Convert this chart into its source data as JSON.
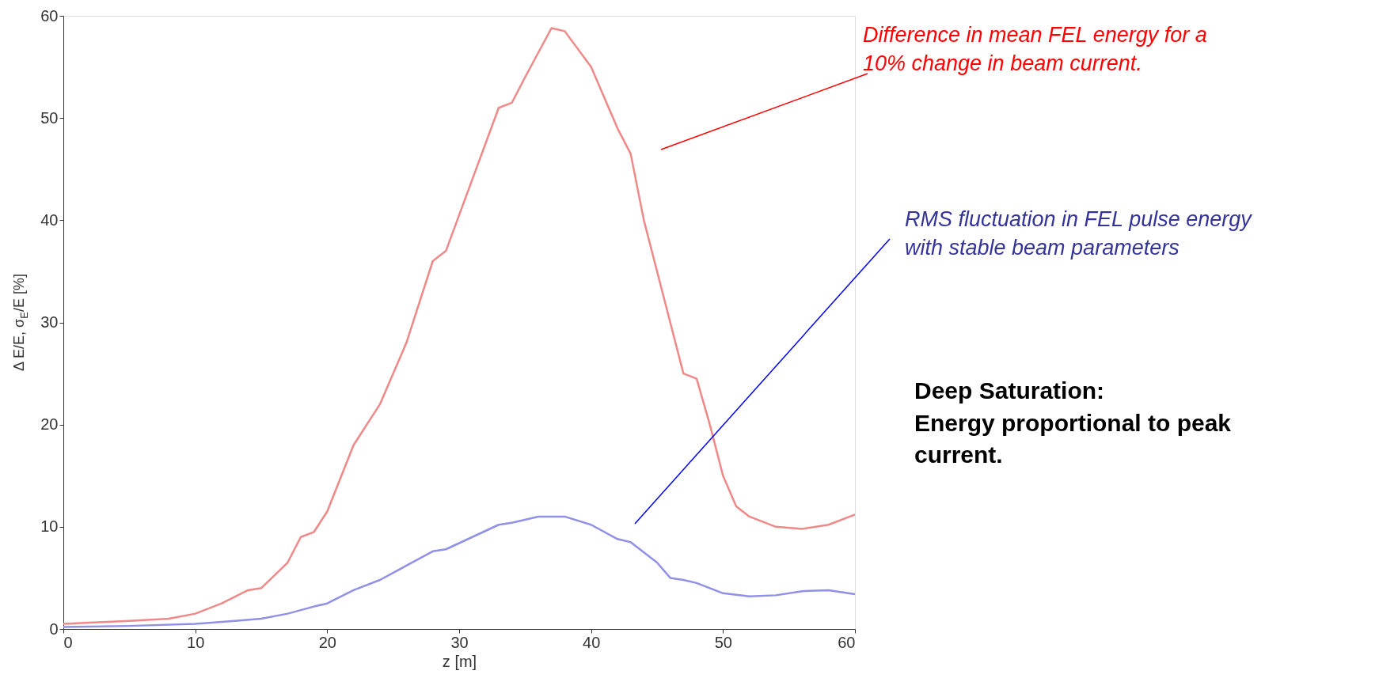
{
  "chart_data": {
    "type": "line",
    "xlabel": "z [m]",
    "ylabel": "Δ E/E, σ$_{E}$/E [%]",
    "xlim": [
      0,
      60
    ],
    "xticks": [
      0,
      10,
      20,
      30,
      40,
      50,
      60
    ],
    "ylim": [
      0,
      60
    ],
    "yticks": [
      0,
      10,
      20,
      30,
      40,
      50,
      60
    ],
    "grid": false,
    "series": [
      {
        "color": "#f08888",
        "x": [
          0,
          5,
          8,
          10,
          12,
          14,
          15,
          17,
          18,
          19,
          20,
          22,
          23,
          24,
          26,
          28,
          29,
          31,
          33,
          34,
          35,
          37,
          38,
          40,
          42,
          43,
          44,
          46,
          47,
          48,
          49,
          50,
          51,
          52,
          54,
          56,
          58,
          60
        ],
        "values": [
          0.5,
          0.8,
          1.0,
          1.5,
          2.5,
          3.8,
          4.0,
          6.5,
          9.0,
          9.5,
          11.5,
          18,
          20,
          22,
          28,
          36,
          37,
          44,
          51,
          51.5,
          54,
          58.8,
          58.5,
          55,
          49,
          46.5,
          40,
          30,
          25,
          24.5,
          20,
          15,
          12,
          11,
          10,
          9.8,
          10.2,
          11.2
        ]
      },
      {
        "color": "#9090e8",
        "x": [
          0,
          5,
          10,
          13,
          15,
          17,
          19,
          20,
          22,
          24,
          26,
          28,
          29,
          31,
          33,
          34,
          36,
          38,
          40,
          42,
          43,
          45,
          46,
          47,
          48,
          50,
          52,
          54,
          56,
          58,
          60
        ],
        "values": [
          0.2,
          0.3,
          0.5,
          0.8,
          1.0,
          1.5,
          2.2,
          2.5,
          3.8,
          4.8,
          6.2,
          7.6,
          7.8,
          9.0,
          10.2,
          10.4,
          11,
          11,
          10.2,
          8.8,
          8.5,
          6.5,
          5,
          4.8,
          4.5,
          3.5,
          3.2,
          3.3,
          3.7,
          3.8,
          3.4
        ]
      }
    ],
    "annotations": [
      "Difference in mean FEL energy for a\n10% change in beam current.",
      "RMS fluctuation in FEL pulse energy\nwith stable beam parameters",
      "Deep Saturation:\nEnergy proportional to peak\ncurrent."
    ]
  }
}
